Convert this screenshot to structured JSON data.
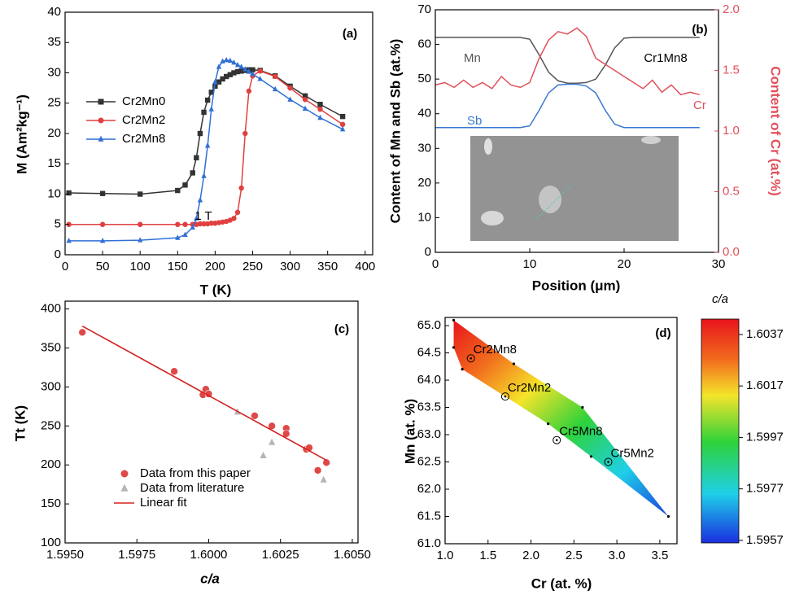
{
  "chart_data": [
    {
      "type": "line",
      "annotations": [
        "(a)",
        "1 T"
      ],
      "x_label": "T (K)",
      "y_label": "M (Am²kg⁻¹)",
      "x": [
        5,
        50,
        100,
        150,
        160,
        170,
        175,
        180,
        185,
        190,
        195,
        200,
        205,
        210,
        215,
        220,
        225,
        230,
        235,
        240,
        245,
        250,
        260,
        280,
        300,
        320,
        340,
        370
      ],
      "series": [
        {
          "name": "Cr2Mn0",
          "color": "#333333",
          "marker": "square",
          "values": [
            10.2,
            10.1,
            10.0,
            10.6,
            11.5,
            13.5,
            16,
            20,
            23.5,
            25.5,
            26.8,
            27.8,
            28.5,
            29,
            29.4,
            29.7,
            30,
            30.2,
            30.3,
            30.4,
            30.5,
            30.5,
            30.4,
            29.5,
            27.8,
            26.2,
            24.8,
            22.8
          ]
        },
        {
          "name": "Cr2Mn2",
          "color": "#e0403f",
          "marker": "circle",
          "values": [
            5.0,
            5.0,
            5.0,
            5.0,
            5.0,
            5.0,
            5.0,
            5.1,
            5.1,
            5.1,
            5.2,
            5.2,
            5.3,
            5.4,
            5.5,
            5.7,
            6.0,
            7.0,
            11,
            20,
            27,
            29.5,
            30.3,
            29.4,
            27.5,
            25.6,
            24.0,
            21.5
          ]
        },
        {
          "name": "Cr2Mn8",
          "color": "#2f6fd6",
          "marker": "triangle",
          "values": [
            2.3,
            2.3,
            2.4,
            2.8,
            3.3,
            4.5,
            6,
            9,
            13,
            18,
            24,
            28.5,
            31,
            31.9,
            32.1,
            32,
            31.7,
            31.3,
            31,
            30.6,
            30.2,
            29.8,
            29.0,
            27.3,
            25.6,
            24.1,
            22.6,
            20.7
          ]
        }
      ],
      "xlim": [
        0,
        410
      ],
      "xticks": [
        0,
        50,
        100,
        150,
        200,
        250,
        300,
        350,
        400
      ],
      "ylim": [
        0,
        40
      ],
      "yticks": [
        0,
        5,
        10,
        15,
        20,
        25,
        30,
        35,
        40
      ]
    },
    {
      "type": "line",
      "annotations": [
        "(b)",
        "Cr1Mn8"
      ],
      "x_label": "Position (μm)",
      "y_label": "Content of Mn and Sb (at.%)",
      "y2_label": "Content of Cr (at.%)",
      "x": [
        0,
        1,
        2,
        3,
        4,
        5,
        6,
        7,
        8,
        9,
        10,
        11,
        12,
        13,
        14,
        15,
        16,
        17,
        18,
        19,
        20,
        21,
        22,
        23,
        24,
        25,
        26,
        27,
        28
      ],
      "series": [
        {
          "name": "Mn",
          "color": "#555555",
          "values": [
            62,
            62,
            62,
            62,
            62,
            62,
            62,
            62,
            62,
            62,
            61.5,
            57,
            52,
            49.5,
            48.8,
            48.8,
            49,
            50,
            54,
            59,
            61.8,
            62,
            62,
            62,
            62,
            62,
            62,
            62,
            62
          ]
        },
        {
          "name": "Sb",
          "color": "#3a78d0",
          "values": [
            36,
            36,
            36,
            36,
            36,
            36,
            36,
            36,
            36,
            36,
            36.5,
            41,
            46,
            48.3,
            48.5,
            48.5,
            48,
            46,
            41,
            37,
            36,
            36,
            36,
            36,
            36,
            36,
            36,
            36,
            36
          ]
        },
        {
          "name": "Cr",
          "color": "#e0505a",
          "axis": "y2",
          "values": [
            1.38,
            1.4,
            1.36,
            1.42,
            1.36,
            1.4,
            1.35,
            1.45,
            1.38,
            1.36,
            1.4,
            1.6,
            1.75,
            1.82,
            1.8,
            1.85,
            1.78,
            1.6,
            1.55,
            1.5,
            1.45,
            1.4,
            1.35,
            1.42,
            1.32,
            1.38,
            1.3,
            1.32,
            1.3
          ]
        }
      ],
      "xlim": [
        0,
        30
      ],
      "xticks": [
        0,
        10,
        20,
        30
      ],
      "ylim": [
        0,
        70
      ],
      "yticks": [
        0,
        10,
        20,
        30,
        40,
        50,
        60,
        70
      ],
      "y2lim": [
        0,
        2.0
      ],
      "y2ticks": [
        {
          "value": 0,
          "label": "0.0"
        },
        0.5,
        {
          "value": 1,
          "label": "1.0"
        },
        1.5,
        {
          "value": 2,
          "label": "2.0"
        }
      ]
    },
    {
      "type": "scatter",
      "annotations": [
        "(c)"
      ],
      "x_label": "c/a",
      "y_label": "Tt (K)",
      "series": [
        {
          "name": "Data from this paper",
          "color": "#e04848",
          "marker": "circle",
          "x": [
            1.5956,
            1.5988,
            1.5998,
            1.5999,
            1.6,
            1.6016,
            1.6022,
            1.6027,
            1.6027,
            1.6034,
            1.6035,
            1.6038,
            1.6041
          ],
          "values": [
            370,
            320,
            290,
            297,
            291,
            263,
            250,
            247,
            240,
            220,
            222,
            193,
            203
          ]
        },
        {
          "name": "Data from literature",
          "color": "#b5b5b5",
          "marker": "triangle",
          "x": [
            1.601,
            1.6019,
            1.6022,
            1.604
          ],
          "values": [
            268,
            212,
            229,
            181
          ]
        },
        {
          "name": "Linear fit",
          "color": "#d42020",
          "marker": "line",
          "x": [
            1.5956,
            1.6041
          ],
          "values": [
            378,
            206
          ]
        }
      ],
      "xlim": [
        1.595,
        1.6052
      ],
      "xticks": [
        {
          "value": 1.595,
          "label": "1.5950"
        },
        1.5975,
        {
          "value": 1.6,
          "label": "1.6000"
        },
        1.6025,
        {
          "value": 1.605,
          "label": "1.6050"
        }
      ],
      "ylim": [
        100,
        410
      ],
      "yticks": [
        100,
        150,
        200,
        250,
        300,
        350,
        400
      ]
    },
    {
      "type": "contour",
      "annotations": [
        "(d)"
      ],
      "x_label": "Cr (at. %)",
      "y_label": "Mn (at. %)",
      "colorbar_label": "c/a",
      "sample_points": {
        "x": [
          1.1,
          1.8,
          2.6,
          3.6,
          2.7,
          2.2,
          1.2,
          1.1
        ],
        "values": [
          65.1,
          64.3,
          63.5,
          61.5,
          62.6,
          63.2,
          64.2,
          64.6
        ]
      },
      "labeled_points": {
        "labels": [
          "Cr2Mn8",
          "Cr2Mn2",
          "Cr5Mn8",
          "Cr5Mn2"
        ],
        "x": [
          1.3,
          1.7,
          2.3,
          2.9
        ],
        "values": [
          64.4,
          63.7,
          62.9,
          62.5
        ]
      },
      "xlim": [
        1.0,
        3.7
      ],
      "xticks": [
        {
          "value": 1,
          "label": "1.0"
        },
        1.5,
        {
          "value": 2,
          "label": "2.0"
        },
        2.5,
        {
          "value": 3,
          "label": "3.0"
        },
        3.5
      ],
      "ylim": [
        61.0,
        65.15
      ],
      "yticks": [
        {
          "value": 61,
          "label": "61.0"
        },
        61.5,
        {
          "value": 62,
          "label": "62.0"
        },
        62.5,
        {
          "value": 63,
          "label": "63.0"
        },
        63.5,
        {
          "value": 64,
          "label": "64.0"
        },
        64.5,
        {
          "value": 65,
          "label": "65.0"
        }
      ],
      "clim": [
        1.5956,
        1.6043
      ],
      "cticks": [
        1.5957,
        1.5977,
        1.5997,
        1.6017,
        1.6037
      ]
    }
  ]
}
